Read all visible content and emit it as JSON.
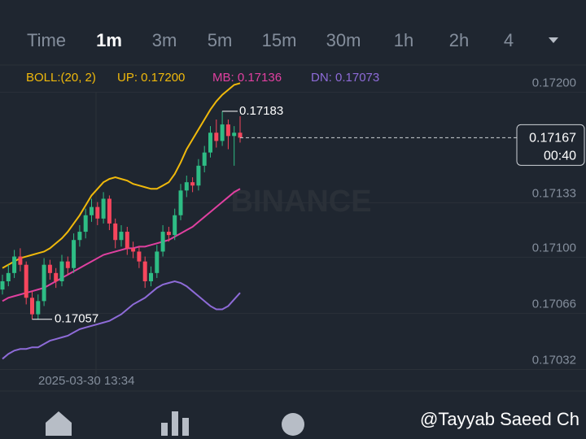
{
  "tabs": [
    "Time",
    "1m",
    "3m",
    "5m",
    "15m",
    "30m",
    "1h",
    "2h",
    "4"
  ],
  "indicator": {
    "name": "BOLL:(20, 2)",
    "up": "UP: 0.17200",
    "mb": "MB: 0.17136",
    "dn": "DN: 0.17073"
  },
  "chart_data": {
    "type": "candlestick",
    "open": [
      0.17075,
      0.1708,
      0.17085,
      0.17095,
      0.1709,
      0.1707,
      0.1706,
      0.17068,
      0.1709,
      0.17085,
      0.1708,
      0.17092,
      0.17088,
      0.17105,
      0.1711,
      0.1712,
      0.17125,
      0.17118,
      0.1713,
      0.17115,
      0.17105,
      0.1711,
      0.171,
      0.17098,
      0.17092,
      0.1708,
      0.17085,
      0.17098,
      0.1711,
      0.17108,
      0.1712,
      0.17135,
      0.1714,
      0.17138,
      0.1715,
      0.17158,
      0.1717,
      0.17165,
      0.17175,
      0.17168,
      0.1717
    ],
    "high": [
      0.17084,
      0.1709,
      0.17099,
      0.171,
      0.17092,
      0.17074,
      0.17072,
      0.17094,
      0.17093,
      0.17088,
      0.17096,
      0.17095,
      0.17109,
      0.17114,
      0.17124,
      0.1713,
      0.17128,
      0.17134,
      0.17132,
      0.17118,
      0.17114,
      0.17113,
      0.17104,
      0.17101,
      0.17095,
      0.17089,
      0.17102,
      0.17114,
      0.17113,
      0.17124,
      0.17139,
      0.17144,
      0.17143,
      0.17154,
      0.17162,
      0.17174,
      0.17178,
      0.17183,
      0.17178,
      0.17174,
      0.1718
    ],
    "low": [
      0.17072,
      0.17077,
      0.17082,
      0.17086,
      0.17066,
      0.17057,
      0.17057,
      0.17065,
      0.17081,
      0.17076,
      0.17077,
      0.17084,
      0.17085,
      0.17101,
      0.17106,
      0.17116,
      0.17114,
      0.17115,
      0.17111,
      0.171,
      0.17101,
      0.17096,
      0.17094,
      0.17088,
      0.17076,
      0.17077,
      0.17082,
      0.17095,
      0.17104,
      0.17105,
      0.17117,
      0.17131,
      0.17134,
      0.17135,
      0.17146,
      0.17155,
      0.17161,
      0.17162,
      0.1716,
      0.1715,
      0.17164
    ],
    "close": [
      0.1708,
      0.17085,
      0.17095,
      0.1709,
      0.1707,
      0.1706,
      0.17068,
      0.1709,
      0.17085,
      0.1708,
      0.17092,
      0.17088,
      0.17105,
      0.1711,
      0.1712,
      0.17125,
      0.17118,
      0.1713,
      0.17115,
      0.17105,
      0.1711,
      0.171,
      0.17098,
      0.17092,
      0.1708,
      0.17085,
      0.17098,
      0.1711,
      0.17108,
      0.1712,
      0.17135,
      0.1714,
      0.17138,
      0.1715,
      0.17158,
      0.1717,
      0.17165,
      0.17175,
      0.17168,
      0.1717,
      0.17167
    ],
    "up_color": "#2ebd85",
    "down_color": "#f6465d",
    "series": [
      {
        "color": "#f0b90b",
        "values": [
          0.17088,
          0.1709,
          0.17092,
          0.17094,
          0.17095,
          0.17096,
          0.17097,
          0.17098,
          0.171,
          0.17103,
          0.17106,
          0.1711,
          0.17115,
          0.1712,
          0.17126,
          0.17132,
          0.17136,
          0.1714,
          0.17142,
          0.17143,
          0.17142,
          0.17141,
          0.17139,
          0.17138,
          0.17137,
          0.17136,
          0.17136,
          0.17138,
          0.1714,
          0.17145,
          0.17152,
          0.1716,
          0.17166,
          0.17172,
          0.17178,
          0.17184,
          0.17189,
          0.17193,
          0.17196,
          0.17199,
          0.172
        ]
      },
      {
        "color": "#e040a0",
        "values": [
          0.17068,
          0.1707,
          0.17071,
          0.17072,
          0.17073,
          0.17074,
          0.17075,
          0.17076,
          0.17078,
          0.1708,
          0.17082,
          0.17084,
          0.17086,
          0.17088,
          0.1709,
          0.17092,
          0.17094,
          0.17096,
          0.17097,
          0.17098,
          0.17099,
          0.171,
          0.171,
          0.17101,
          0.17101,
          0.17102,
          0.17103,
          0.17104,
          0.17105,
          0.17107,
          0.17109,
          0.17111,
          0.17113,
          0.17116,
          0.17119,
          0.17122,
          0.17125,
          0.17128,
          0.17131,
          0.17134,
          0.17136
        ]
      },
      {
        "color": "#8e6bd8",
        "values": [
          0.17033,
          0.17036,
          0.17038,
          0.17039,
          0.17039,
          0.1704,
          0.1704,
          0.17042,
          0.17044,
          0.17045,
          0.17046,
          0.17047,
          0.17049,
          0.17051,
          0.17052,
          0.17053,
          0.17054,
          0.17055,
          0.17056,
          0.17058,
          0.1706,
          0.17063,
          0.17066,
          0.17068,
          0.1707,
          0.17073,
          0.17076,
          0.17078,
          0.17079,
          0.1708,
          0.17079,
          0.17077,
          0.17074,
          0.17071,
          0.17068,
          0.17065,
          0.17063,
          0.17063,
          0.17065,
          0.17069,
          0.17073
        ]
      }
    ],
    "ylim": [
      0.17014,
      0.17211
    ],
    "yticks": [
      {
        "value": 0.172,
        "label": "0.17200"
      },
      {
        "value": 0.17133,
        "label": "0.17133"
      },
      {
        "value": 0.171,
        "label": "0.17100"
      },
      {
        "value": 0.17066,
        "label": "0.17066"
      },
      {
        "value": 0.17032,
        "label": "0.17032"
      }
    ],
    "grid": true,
    "max_label": "0.17183",
    "min_label": "0.17057",
    "current_price": "0.17167",
    "countdown": "00:40",
    "time_label": "2025-03-30 13:34",
    "watermark": "BINANCE"
  },
  "footer": {
    "credit": "@Tayyab Saeed Ch"
  }
}
